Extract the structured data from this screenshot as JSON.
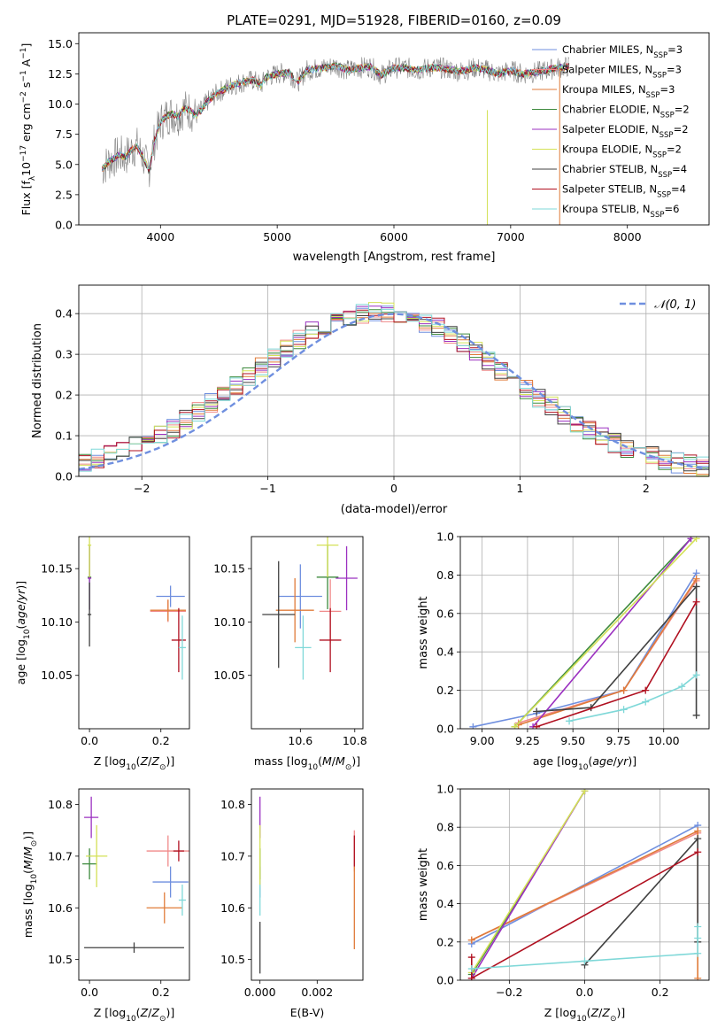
{
  "chart_data": [
    {
      "type": "line",
      "title": "PLATE=0291, MJD=51928, FIBERID=0160, z=0.09",
      "xlabel": "wavelength [Angstrom, rest frame]",
      "ylabel": "Flux [f_λ10^-17 erg cm^-2 s^-1 A^-1]",
      "xlim": [
        3300,
        8700
      ],
      "ylim": [
        0,
        15.9
      ],
      "xticks": [
        4000,
        5000,
        6000,
        7000,
        8000
      ],
      "yticks": [
        0.0,
        2.5,
        5.0,
        7.5,
        10.0,
        12.5,
        15.0
      ],
      "legend_position": "top-right",
      "legend": [
        {
          "label": "Chabrier MILES, N",
          "sub": "SSP",
          "suffix": "=3",
          "color": "#6f8fdf"
        },
        {
          "label": "Salpeter MILES, N",
          "sub": "SSP",
          "suffix": "=3",
          "color": "#f08a8a"
        },
        {
          "label": "Kroupa MILES, N",
          "sub": "SSP",
          "suffix": "=3",
          "color": "#e07b39"
        },
        {
          "label": "Chabrier ELODIE, N",
          "sub": "SSP",
          "suffix": "=2",
          "color": "#3d8a3d"
        },
        {
          "label": "Salpeter ELODIE, N",
          "sub": "SSP",
          "suffix": "=2",
          "color": "#9b30c0"
        },
        {
          "label": "Kroupa ELODIE, N",
          "sub": "SSP",
          "suffix": "=2",
          "color": "#d4e157"
        },
        {
          "label": "Chabrier STELIB, N",
          "sub": "SSP",
          "suffix": "=4",
          "color": "#404040"
        },
        {
          "label": "Salpeter STELIB, N",
          "sub": "SSP",
          "suffix": "=4",
          "color": "#b01020"
        },
        {
          "label": "Kroupa STELIB, N",
          "sub": "SSP",
          "suffix": "=6",
          "color": "#7fd8d8"
        }
      ],
      "data_color": "#808080",
      "spectrum_anchors": {
        "wavelength": [
          3500,
          3550,
          3650,
          3700,
          3750,
          3800,
          3850,
          3900,
          3950,
          4000,
          4050,
          4100,
          4150,
          4200,
          4250,
          4300,
          4350,
          4400,
          4500,
          4600,
          4700,
          4800,
          4861,
          4900,
          5000,
          5100,
          5175,
          5250,
          5400,
          5500,
          5600,
          5700,
          5800,
          5890,
          6000,
          6100,
          6200,
          6300,
          6400,
          6563,
          6700,
          6800,
          6900,
          7000,
          7100,
          7200,
          7300,
          7400,
          7500
        ],
        "flux": [
          4.6,
          5.2,
          5.8,
          5.6,
          6.2,
          6.5,
          5.6,
          4.5,
          7.0,
          8.5,
          9.0,
          9.2,
          9.0,
          9.6,
          9.5,
          9.0,
          9.5,
          10.2,
          11.0,
          11.5,
          11.8,
          12.0,
          11.5,
          12.2,
          12.5,
          12.6,
          11.8,
          12.8,
          13.0,
          13.2,
          12.8,
          13.0,
          13.1,
          12.4,
          13.0,
          13.0,
          12.8,
          13.0,
          13.0,
          12.7,
          13.0,
          12.8,
          12.5,
          12.8,
          12.5,
          12.6,
          12.8,
          13.0,
          13.1
        ]
      }
    },
    {
      "type": "histogram",
      "xlabel": "(data-model)/error",
      "ylabel": "Normed distribution",
      "xlim": [
        -2.5,
        2.5
      ],
      "ylim": [
        0,
        0.47
      ],
      "xticks": [
        -2,
        -1,
        0,
        1,
        2
      ],
      "yticks": [
        0.0,
        0.1,
        0.2,
        0.3,
        0.4
      ],
      "grid": true,
      "legend_position": "top-right",
      "legend": [
        {
          "label": "𝒩(0, 1)",
          "color": "#6f8fdf",
          "style": "dashed"
        }
      ],
      "bin_width": 0.1
    },
    {
      "type": "scatter",
      "xlabel": "Z [log10(Z/Z⊙)]",
      "ylabel": "age [log10(age/yr)]",
      "xlim": [
        -0.03,
        0.28
      ],
      "ylim": [
        10.0,
        10.18
      ],
      "xticks": [
        0.0,
        0.2
      ],
      "yticks": [
        10.05,
        10.1,
        10.15
      ],
      "points": [
        {
          "model": "Chabrier MILES",
          "x": 0.227,
          "y": 10.124,
          "xerr": 0.04,
          "yerr": 0.01
        },
        {
          "model": "Salpeter MILES",
          "x": 0.22,
          "y": 10.11,
          "xerr": 0.05,
          "yerr": 0.01
        },
        {
          "model": "Kroupa MILES",
          "x": 0.22,
          "y": 10.111,
          "xerr": 0.05,
          "yerr": 0.01
        },
        {
          "model": "Chabrier ELODIE",
          "x": 0.0,
          "y": 10.142,
          "xerr": 0.005,
          "yerr": 0.03
        },
        {
          "model": "Salpeter ELODIE",
          "x": 0.0,
          "y": 10.141,
          "xerr": 0.005,
          "yerr": 0.03
        },
        {
          "model": "Kroupa ELODIE",
          "x": 0.0,
          "y": 10.172,
          "xerr": 0.005,
          "yerr": 0.03
        },
        {
          "model": "Chabrier STELIB",
          "x": 0.0,
          "y": 10.107,
          "xerr": 0.005,
          "yerr": 0.03
        },
        {
          "model": "Salpeter STELIB",
          "x": 0.25,
          "y": 10.083,
          "xerr": 0.02,
          "yerr": 0.03
        },
        {
          "model": "Kroupa STELIB",
          "x": 0.26,
          "y": 10.076,
          "xerr": 0.01,
          "yerr": 0.03
        }
      ]
    },
    {
      "type": "scatter",
      "xlabel": "mass [log10(M/M⊙)]",
      "ylabel": "",
      "xlim": [
        10.42,
        10.83
      ],
      "ylim": [
        10.0,
        10.18
      ],
      "xticks": [
        10.6,
        10.8
      ],
      "yticks": [
        10.05,
        10.1,
        10.15
      ],
      "points": [
        {
          "model": "Chabrier MILES",
          "x": 10.6,
          "y": 10.124,
          "xerr": 0.08,
          "yerr": 0.03
        },
        {
          "model": "Salpeter MILES",
          "x": 10.71,
          "y": 10.11,
          "xerr": 0.04,
          "yerr": 0.03
        },
        {
          "model": "Kroupa MILES",
          "x": 10.58,
          "y": 10.111,
          "xerr": 0.07,
          "yerr": 0.03
        },
        {
          "model": "Chabrier ELODIE",
          "x": 10.7,
          "y": 10.142,
          "xerr": 0.04,
          "yerr": 0.03
        },
        {
          "model": "Salpeter ELODIE",
          "x": 10.77,
          "y": 10.141,
          "xerr": 0.04,
          "yerr": 0.03
        },
        {
          "model": "Kroupa ELODIE",
          "x": 10.7,
          "y": 10.172,
          "xerr": 0.04,
          "yerr": 0.03
        },
        {
          "model": "Chabrier STELIB",
          "x": 10.52,
          "y": 10.107,
          "xerr": 0.06,
          "yerr": 0.05
        },
        {
          "model": "Salpeter STELIB",
          "x": 10.71,
          "y": 10.083,
          "xerr": 0.04,
          "yerr": 0.03
        },
        {
          "model": "Kroupa STELIB",
          "x": 10.61,
          "y": 10.076,
          "xerr": 0.03,
          "yerr": 0.03
        }
      ]
    },
    {
      "type": "line",
      "xlabel": "age  [log10(age/yr)]",
      "ylabel": "mass weight",
      "xlim": [
        8.88,
        10.25
      ],
      "ylim": [
        0,
        1.0
      ],
      "xticks": [
        9.0,
        9.25,
        9.5,
        9.75,
        10.0
      ],
      "yticks": [
        0.0,
        0.2,
        0.4,
        0.6,
        0.8,
        1.0
      ],
      "grid": true,
      "series": [
        {
          "model": "Chabrier MILES",
          "x": [
            8.95,
            9.3,
            9.78,
            10.18
          ],
          "y": [
            0.01,
            0.08,
            0.2,
            0.81
          ]
        },
        {
          "model": "Salpeter MILES",
          "x": [
            9.2,
            9.78,
            10.18
          ],
          "y": [
            0.03,
            0.2,
            0.77
          ]
        },
        {
          "model": "Kroupa MILES",
          "x": [
            9.2,
            9.78,
            10.18
          ],
          "y": [
            0.02,
            0.2,
            0.78
          ]
        },
        {
          "model": "Chabrier ELODIE",
          "x": [
            9.18,
            10.15
          ],
          "y": [
            0.01,
            0.99
          ]
        },
        {
          "model": "Salpeter ELODIE",
          "x": [
            9.28,
            10.15
          ],
          "y": [
            0.01,
            0.99
          ]
        },
        {
          "model": "Kroupa ELODIE",
          "x": [
            9.18,
            10.18
          ],
          "y": [
            0.01,
            0.99
          ]
        },
        {
          "model": "Chabrier STELIB",
          "x": [
            9.3,
            9.6,
            10.18,
            10.18
          ],
          "y": [
            0.09,
            0.11,
            0.74,
            0.07
          ]
        },
        {
          "model": "Salpeter STELIB",
          "x": [
            9.3,
            9.9,
            10.18
          ],
          "y": [
            0.01,
            0.2,
            0.66
          ]
        },
        {
          "model": "Kroupa STELIB",
          "x": [
            9.48,
            9.78,
            9.9,
            10.1,
            10.18
          ],
          "y": [
            0.04,
            0.1,
            0.14,
            0.22,
            0.28
          ]
        }
      ]
    },
    {
      "type": "scatter",
      "xlabel": "Z [log10(Z/Z⊙)]",
      "ylabel": "mass [log10(M/M⊙)]",
      "xlim": [
        -0.03,
        0.28
      ],
      "ylim": [
        10.46,
        10.83
      ],
      "xticks": [
        0.0,
        0.2
      ],
      "yticks": [
        10.5,
        10.6,
        10.7,
        10.8
      ],
      "points": [
        {
          "model": "Chabrier MILES",
          "x": 0.227,
          "y": 10.65,
          "xerr": 0.05,
          "yerr": 0.03
        },
        {
          "model": "Salpeter MILES",
          "x": 0.22,
          "y": 10.71,
          "xerr": 0.06,
          "yerr": 0.03
        },
        {
          "model": "Kroupa MILES",
          "x": 0.21,
          "y": 10.6,
          "xerr": 0.05,
          "yerr": 0.03
        },
        {
          "model": "Chabrier ELODIE",
          "x": 0.0,
          "y": 10.685,
          "xerr": 0.02,
          "yerr": 0.03
        },
        {
          "model": "Salpeter ELODIE",
          "x": 0.005,
          "y": 10.775,
          "xerr": 0.02,
          "yerr": 0.04
        },
        {
          "model": "Kroupa ELODIE",
          "x": 0.02,
          "y": 10.7,
          "xerr": 0.03,
          "yerr": 0.06
        },
        {
          "model": "Chabrier STELIB",
          "x": 0.125,
          "y": 10.523,
          "xerr": 0.14,
          "yerr": 0.01
        },
        {
          "model": "Salpeter STELIB",
          "x": 0.25,
          "y": 10.71,
          "xerr": 0.015,
          "yerr": 0.02
        },
        {
          "model": "Kroupa STELIB",
          "x": 0.26,
          "y": 10.615,
          "xerr": 0.01,
          "yerr": 0.03
        }
      ]
    },
    {
      "type": "scatter",
      "xlabel": "E(B-V)",
      "ylabel": "",
      "xlim": [
        -0.0003,
        0.0036
      ],
      "ylim": [
        10.46,
        10.83
      ],
      "xticks": [
        0.0,
        0.002
      ],
      "yticks": [
        10.5,
        10.6,
        10.7,
        10.8
      ],
      "points": [
        {
          "model": "Chabrier MILES",
          "x": 0.0,
          "y": 10.65,
          "xerr": 0,
          "yerr": 0.03
        },
        {
          "model": "Salpeter MILES",
          "x": 0.0033,
          "y": 10.71,
          "xerr": 0,
          "yerr": 0.04
        },
        {
          "model": "Kroupa MILES",
          "x": 0.0033,
          "y": 10.6,
          "xerr": 0,
          "yerr": 0.08
        },
        {
          "model": "Chabrier ELODIE",
          "x": 0.0,
          "y": 10.685,
          "xerr": 0,
          "yerr": 0.03
        },
        {
          "model": "Salpeter ELODIE",
          "x": 0.0,
          "y": 10.775,
          "xerr": 0,
          "yerr": 0.04
        },
        {
          "model": "Kroupa ELODIE",
          "x": 0.0,
          "y": 10.7,
          "xerr": 0,
          "yerr": 0.06
        },
        {
          "model": "Chabrier STELIB",
          "x": 0.0,
          "y": 10.523,
          "xerr": 0,
          "yerr": 0.05
        },
        {
          "model": "Salpeter STELIB",
          "x": 0.0033,
          "y": 10.71,
          "xerr": 0,
          "yerr": 0.03
        },
        {
          "model": "Kroupa STELIB",
          "x": 0.0,
          "y": 10.615,
          "xerr": 0,
          "yerr": 0.03
        }
      ]
    },
    {
      "type": "line",
      "xlabel": "Z [log10(Z/Z⊙)]",
      "ylabel": "mass weight",
      "xlim": [
        -0.33,
        0.33
      ],
      "ylim": [
        0,
        1.0
      ],
      "xticks": [
        -0.2,
        0.0,
        0.2
      ],
      "yticks": [
        0.0,
        0.2,
        0.4,
        0.6,
        0.8,
        1.0
      ],
      "grid": true,
      "series": [
        {
          "model": "Chabrier MILES",
          "x": [
            -0.3,
            0.3
          ],
          "y": [
            0.19,
            0.81
          ]
        },
        {
          "model": "Salpeter MILES",
          "x": [
            -0.3,
            0.3
          ],
          "y": [
            0.21,
            0.77
          ]
        },
        {
          "model": "Kroupa MILES",
          "x": [
            -0.3,
            0.3,
            0.3
          ],
          "y": [
            0.21,
            0.78,
            0.01
          ]
        },
        {
          "model": "Chabrier ELODIE",
          "x": [
            -0.3,
            0.0
          ],
          "y": [
            0.03,
            0.99
          ]
        },
        {
          "model": "Salpeter ELODIE",
          "x": [
            -0.3,
            0.0
          ],
          "y": [
            0.01,
            0.99
          ]
        },
        {
          "model": "Kroupa ELODIE",
          "x": [
            -0.3,
            0.0
          ],
          "y": [
            0.04,
            0.99
          ]
        },
        {
          "model": "Chabrier STELIB",
          "x": [
            0.0,
            0.3,
            0.3
          ],
          "y": [
            0.08,
            0.74,
            0.2
          ]
        },
        {
          "model": "Salpeter STELIB",
          "x": [
            -0.3,
            -0.3,
            0.3
          ],
          "y": [
            0.12,
            0.01,
            0.67
          ]
        },
        {
          "model": "Kroupa STELIB",
          "x": [
            -0.3,
            0.0,
            0.3,
            0.3,
            0.3
          ],
          "y": [
            0.06,
            0.1,
            0.14,
            0.22,
            0.28
          ]
        }
      ]
    }
  ]
}
